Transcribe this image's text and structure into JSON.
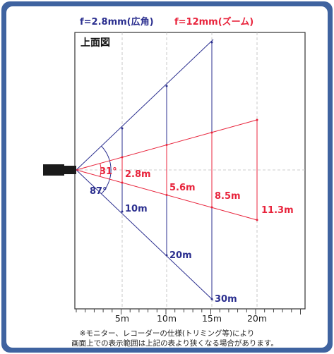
{
  "header": {
    "wide_label": "f=2.8mm(広角)",
    "zoom_label": "f=12mm(ズーム)"
  },
  "panel_title": "上面図",
  "wide_angle": {
    "angle_label": "87°",
    "widths": [
      "10m",
      "20m",
      "30m"
    ]
  },
  "zoom": {
    "angle_label": "31°",
    "widths": [
      "2.8m",
      "5.6m",
      "8.5m",
      "11.3m"
    ]
  },
  "distance_axis": {
    "ticks": [
      "5m",
      "10m",
      "15m",
      "20m"
    ]
  },
  "notes": [
    "※モニター、レコーダーの仕様(トリミング等)により",
    "画面上での表示範囲は上記の表より狭くなる場合があります。"
  ],
  "colors": {
    "frame": "#3f63a0",
    "wide": "#2b2f8f",
    "zoom": "#e8243c",
    "camera": "#1a1a1a"
  }
}
